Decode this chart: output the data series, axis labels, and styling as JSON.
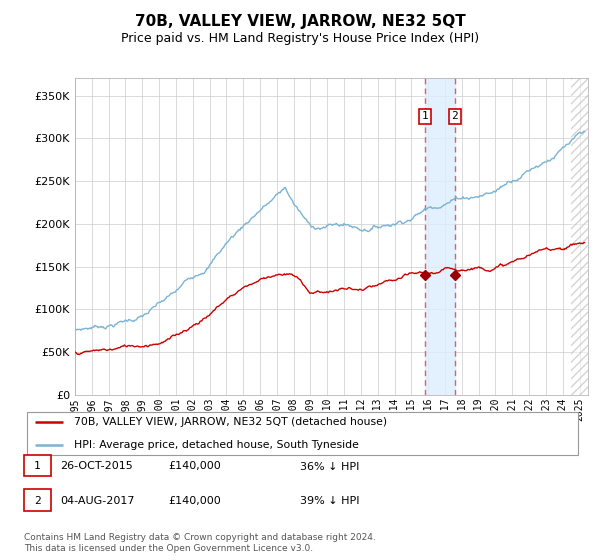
{
  "title": "70B, VALLEY VIEW, JARROW, NE32 5QT",
  "subtitle": "Price paid vs. HM Land Registry's House Price Index (HPI)",
  "title_fontsize": 11,
  "subtitle_fontsize": 9,
  "ylabel_ticks": [
    "£0",
    "£50K",
    "£100K",
    "£150K",
    "£200K",
    "£250K",
    "£300K",
    "£350K"
  ],
  "ytick_values": [
    0,
    50000,
    100000,
    150000,
    200000,
    250000,
    300000,
    350000
  ],
  "ylim": [
    0,
    370000
  ],
  "xlim_start": 1995.0,
  "xlim_end": 2025.5,
  "hpi_color": "#7ab3d4",
  "price_color": "#cc0000",
  "marker_color": "#990000",
  "shading_color": "#ddeeff",
  "vline_color": "#e06060",
  "legend_label_price": "70B, VALLEY VIEW, JARROW, NE32 5QT (detached house)",
  "legend_label_hpi": "HPI: Average price, detached house, South Tyneside",
  "transaction1_date": "26-OCT-2015",
  "transaction1_price": "£140,000",
  "transaction1_pct": "36% ↓ HPI",
  "transaction2_date": "04-AUG-2017",
  "transaction2_price": "£140,000",
  "transaction2_pct": "39% ↓ HPI",
  "footer": "Contains HM Land Registry data © Crown copyright and database right 2024.\nThis data is licensed under the Open Government Licence v3.0.",
  "t1_x": 2015.82,
  "t2_x": 2017.59,
  "t1_price": 140000,
  "t2_price": 140000,
  "hpi_knots_x": [
    1995,
    1997,
    1999,
    2001,
    2003,
    2004,
    2005,
    2006,
    2007,
    2007.5,
    2008,
    2009,
    2010,
    2011,
    2012,
    2013,
    2014,
    2015,
    2016,
    2017,
    2018,
    2019,
    2020,
    2021,
    2022,
    2023,
    2024,
    2025
  ],
  "hpi_knots_y": [
    76000,
    83000,
    93000,
    115000,
    150000,
    175000,
    195000,
    215000,
    230000,
    238000,
    220000,
    190000,
    192000,
    193000,
    188000,
    192000,
    198000,
    207000,
    218000,
    228000,
    235000,
    238000,
    243000,
    258000,
    272000,
    285000,
    298000,
    308000
  ],
  "pp_knots_x": [
    1995,
    1997,
    1999,
    2001,
    2003,
    2004,
    2005,
    2006,
    2007,
    2008,
    2009,
    2010,
    2011,
    2012,
    2013,
    2014,
    2015,
    2016,
    2017,
    2018,
    2019,
    2020,
    2021,
    2022,
    2023,
    2024,
    2025
  ],
  "pp_knots_y": [
    50000,
    52000,
    58000,
    72000,
    100000,
    118000,
    133000,
    143000,
    152000,
    148000,
    128000,
    130000,
    133000,
    130000,
    132000,
    135000,
    138000,
    138000,
    140000,
    143000,
    147000,
    150000,
    155000,
    162000,
    167000,
    172000,
    178000
  ]
}
